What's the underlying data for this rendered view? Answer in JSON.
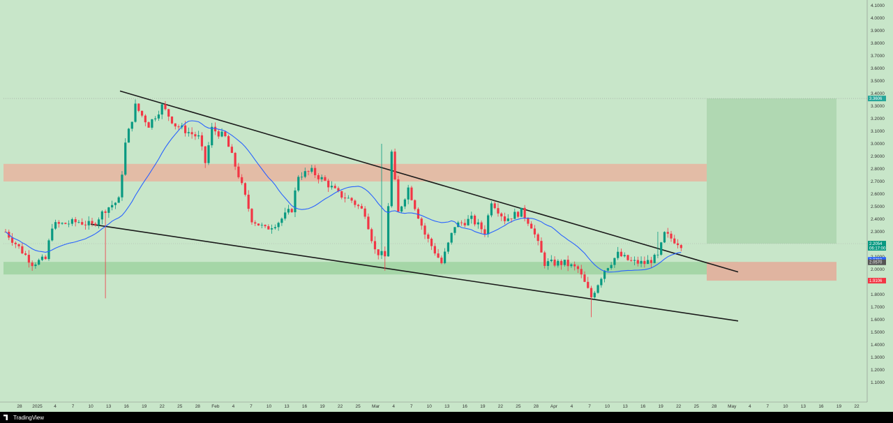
{
  "chart_data": {
    "type": "candlestick",
    "y_axis": {
      "min": 1.0,
      "max": 4.1,
      "tick_labels": [
        "4.1000",
        "4.0000",
        "3.9000",
        "3.8000",
        "3.7000",
        "3.6000",
        "3.5000",
        "3.4000",
        "3.3000",
        "3.2000",
        "3.1000",
        "3.0000",
        "2.9000",
        "2.8000",
        "2.7000",
        "2.6000",
        "2.5000",
        "2.4000",
        "2.3000",
        "2.2000",
        "2.1000",
        "2.0000",
        "1.9000",
        "1.8000",
        "1.7000",
        "1.6000",
        "1.5000",
        "1.4000",
        "1.3000",
        "1.2000",
        "1.1000"
      ]
    },
    "x_axis": {
      "tick_labels": [
        "28",
        "2025",
        "4",
        "7",
        "10",
        "13",
        "16",
        "19",
        "22",
        "25",
        "28",
        "Feb",
        "4",
        "7",
        "10",
        "13",
        "16",
        "19",
        "22",
        "25",
        "Mar",
        "4",
        "7",
        "10",
        "13",
        "16",
        "19",
        "22",
        "25",
        "28",
        "Apr",
        "4",
        "7",
        "10",
        "13",
        "16",
        "19",
        "22",
        "25",
        "28",
        "May",
        "4",
        "7",
        "10",
        "13",
        "16",
        "19",
        "22"
      ]
    },
    "price_tags": {
      "target": "3.3606",
      "last": "2.2054",
      "countdown": "06:17:00",
      "ma": "2.0760",
      "level": "2.0570",
      "stop": "1.9106"
    },
    "ohlc": [],
    "moving_average": [],
    "colors": {
      "up": "#089981",
      "down": "#f23645",
      "ma": "#2962ff",
      "background": "#c8e6c9",
      "resistance_zone": "#e8b4a0",
      "support_zone": "#a5d6a7",
      "target_zone": "#b0d8b2",
      "stop_zone": "#e0b4a0"
    }
  },
  "footer": {
    "brand": "TradingView"
  }
}
